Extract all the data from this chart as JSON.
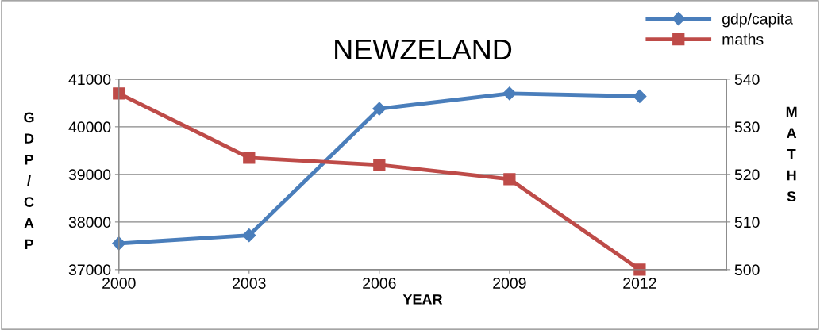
{
  "chart_data": {
    "type": "line",
    "title": "NEWZELAND",
    "xlabel": "YEAR",
    "ylabel": "GDP/CAP",
    "y2label": "MATHS",
    "x": [
      2000,
      2003,
      2006,
      2009,
      2012
    ],
    "xlim": [
      2000,
      2014
    ],
    "xticks": [
      2000,
      2003,
      2006,
      2009,
      2012
    ],
    "ylim": [
      37000,
      41000
    ],
    "yticks": [
      37000,
      38000,
      39000,
      40000,
      41000
    ],
    "y2lim": [
      500,
      540
    ],
    "y2ticks": [
      500,
      510,
      520,
      530,
      540
    ],
    "grid": "y",
    "legend": "top right",
    "series": [
      {
        "name": "gdp/capita",
        "color": "#4a7ebb",
        "marker": "diamond",
        "values": [
          37550,
          37720,
          40380,
          40700,
          40640
        ]
      },
      {
        "name": "maths",
        "color": "#be4b48",
        "marker": "square",
        "axis": "y2",
        "values": [
          537,
          523.5,
          522,
          519,
          500
        ]
      }
    ]
  }
}
